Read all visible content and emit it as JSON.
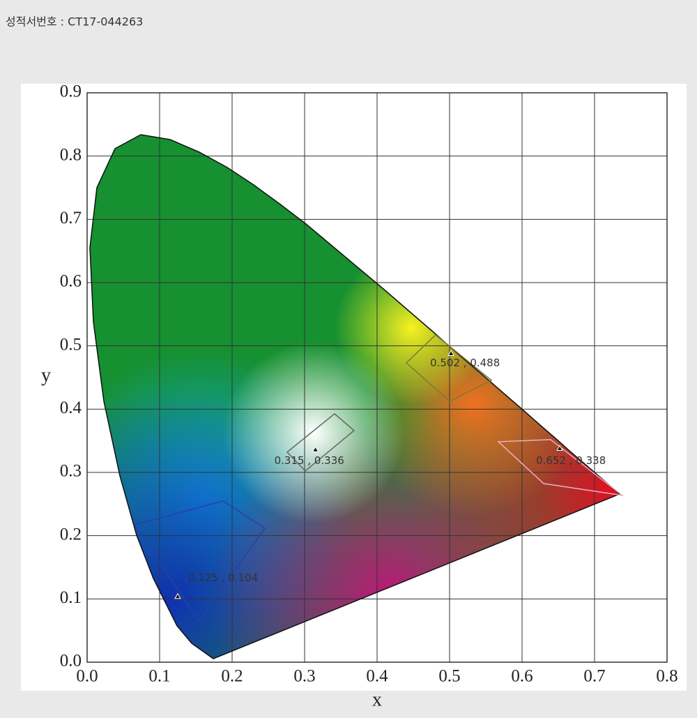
{
  "chart_data": {
    "type": "scatter",
    "title": "성적서번호 : CT17-044263",
    "x_label": "x",
    "y_label": "y",
    "series": [
      {
        "x": [
          0.125,
          0.315,
          0.502,
          0.652
        ],
        "values": [
          0.104,
          0.336,
          0.488,
          0.338
        ],
        "color": "#111111",
        "value_labels": [
          "0.125 , 0.104",
          "0.315 , 0.336",
          "0.502 , 0.488",
          "0.652 , 0.338"
        ]
      }
    ],
    "xlim": [
      0,
      0.8
    ],
    "xticks": [
      {
        "value": 0,
        "label": "0.0"
      },
      0.1,
      0.2,
      0.3,
      0.4,
      0.5,
      0.6,
      0.7,
      0.8
    ],
    "ylim": [
      0,
      0.9
    ],
    "yticks": [
      {
        "value": 0,
        "label": "0.0"
      },
      0.1,
      0.2,
      0.3,
      0.4,
      0.5,
      0.6,
      0.7,
      0.8,
      0.9
    ],
    "grid": true
  }
}
